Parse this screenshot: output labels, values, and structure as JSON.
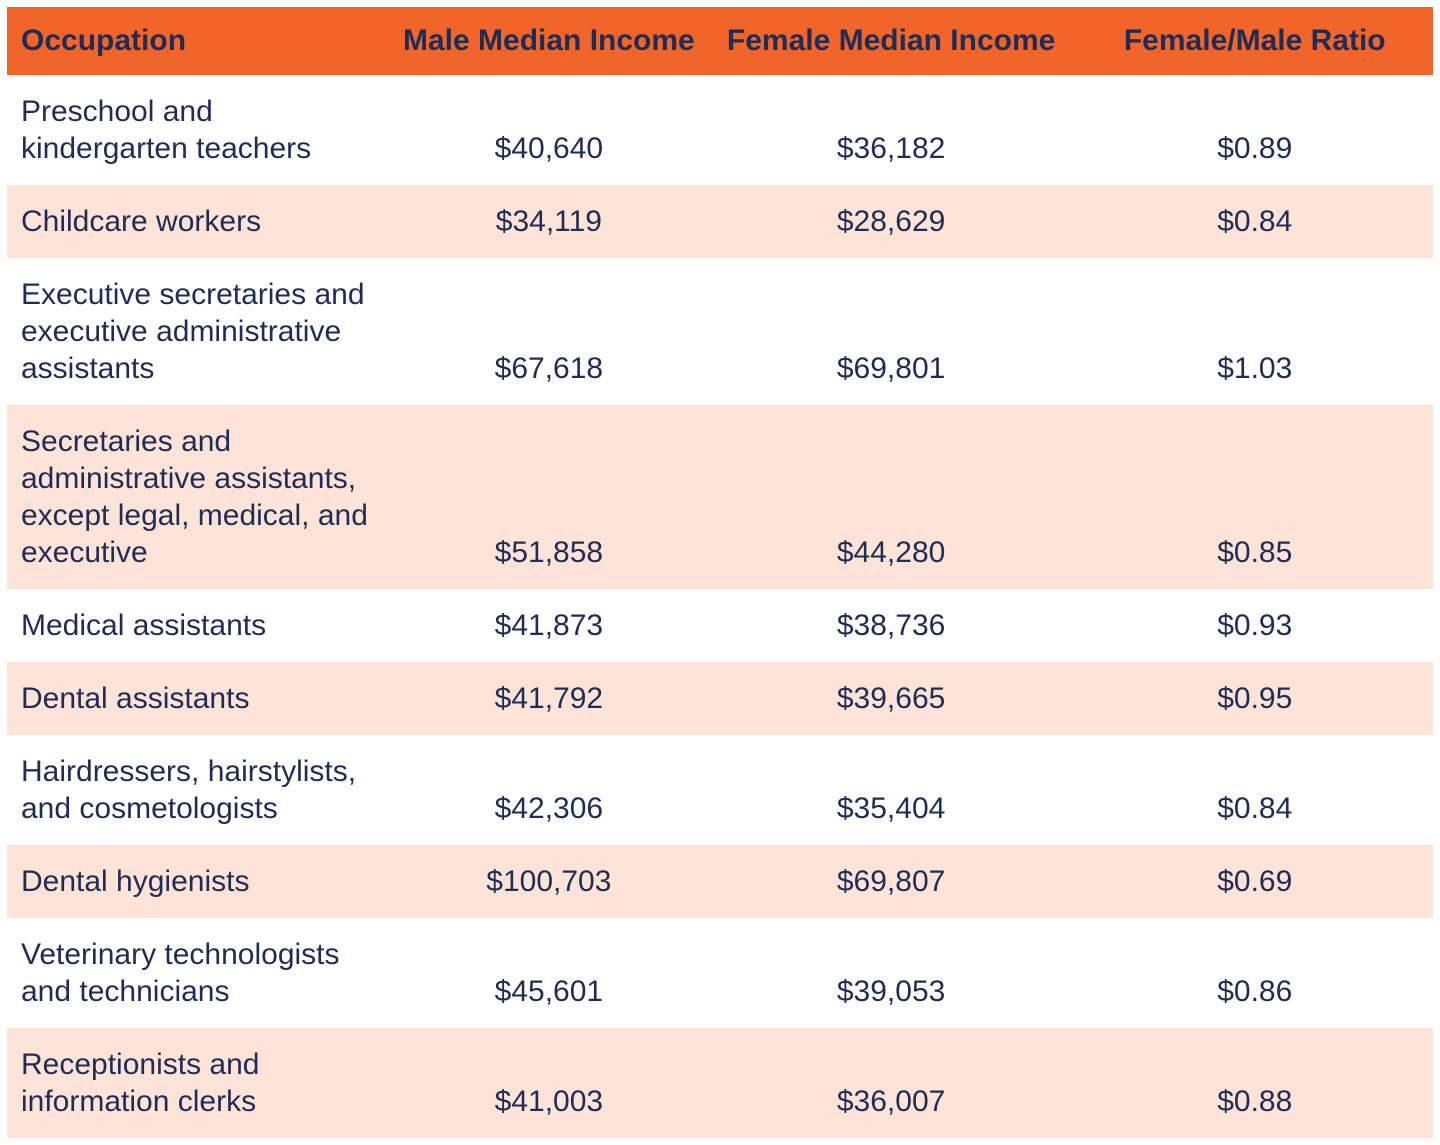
{
  "colors": {
    "header_bg": "#F2652A",
    "row_alt_bg": "#FDE3D8",
    "text_color": "#1F2C54",
    "page_bg": "#FFFFFF"
  },
  "table": {
    "headers": {
      "occupation": "Occupation",
      "male": "Male Median Income",
      "female": "Female Median Income",
      "ratio": "Female/Male Ratio"
    },
    "rows": [
      {
        "occupation": "Preschool and\nkindergarten teachers",
        "male": "$40,640",
        "female": "$36,182",
        "ratio": "$0.89"
      },
      {
        "occupation": "Childcare workers",
        "male": "$34,119",
        "female": "$28,629",
        "ratio": "$0.84"
      },
      {
        "occupation": "Executive secretaries and\nexecutive administrative\nassistants",
        "male": "$67,618",
        "female": "$69,801",
        "ratio": "$1.03"
      },
      {
        "occupation": "Secretaries and\nadministrative assistants,\nexcept legal, medical, and\nexecutive",
        "male": "$51,858",
        "female": "$44,280",
        "ratio": "$0.85"
      },
      {
        "occupation": "Medical assistants",
        "male": "$41,873",
        "female": "$38,736",
        "ratio": "$0.93"
      },
      {
        "occupation": "Dental assistants",
        "male": "$41,792",
        "female": "$39,665",
        "ratio": "$0.95"
      },
      {
        "occupation": "Hairdressers, hairstylists,\nand cosmetologists",
        "male": "$42,306",
        "female": "$35,404",
        "ratio": "$0.84"
      },
      {
        "occupation": "Dental hygienists",
        "male": "$100,703",
        "female": "$69,807",
        "ratio": "$0.69"
      },
      {
        "occupation": "Veterinary technologists\nand technicians",
        "male": "$45,601",
        "female": "$39,053",
        "ratio": "$0.86"
      },
      {
        "occupation": "Receptionists and\ninformation clerks",
        "male": "$41,003",
        "female": "$36,007",
        "ratio": "$0.88"
      }
    ]
  },
  "chart_data": {
    "type": "table",
    "title": "",
    "columns": [
      "Occupation",
      "Male Median Income",
      "Female Median Income",
      "Female/Male Ratio"
    ],
    "rows": [
      {
        "occupation": "Preschool and kindergarten teachers",
        "male_median_income": 40640,
        "female_median_income": 36182,
        "female_male_ratio": 0.89
      },
      {
        "occupation": "Childcare workers",
        "male_median_income": 34119,
        "female_median_income": 28629,
        "female_male_ratio": 0.84
      },
      {
        "occupation": "Executive secretaries and executive administrative assistants",
        "male_median_income": 67618,
        "female_median_income": 69801,
        "female_male_ratio": 1.03
      },
      {
        "occupation": "Secretaries and administrative assistants, except legal, medical, and executive",
        "male_median_income": 51858,
        "female_median_income": 44280,
        "female_male_ratio": 0.85
      },
      {
        "occupation": "Medical assistants",
        "male_median_income": 41873,
        "female_median_income": 38736,
        "female_male_ratio": 0.93
      },
      {
        "occupation": "Dental assistants",
        "male_median_income": 41792,
        "female_median_income": 39665,
        "female_male_ratio": 0.95
      },
      {
        "occupation": "Hairdressers, hairstylists, and cosmetologists",
        "male_median_income": 42306,
        "female_median_income": 35404,
        "female_male_ratio": 0.84
      },
      {
        "occupation": "Dental hygienists",
        "male_median_income": 100703,
        "female_median_income": 69807,
        "female_male_ratio": 0.69
      },
      {
        "occupation": "Veterinary technologists and technicians",
        "male_median_income": 45601,
        "female_median_income": 39053,
        "female_male_ratio": 0.86
      },
      {
        "occupation": "Receptionists and information clerks",
        "male_median_income": 41003,
        "female_median_income": 36007,
        "female_male_ratio": 0.88
      }
    ]
  }
}
